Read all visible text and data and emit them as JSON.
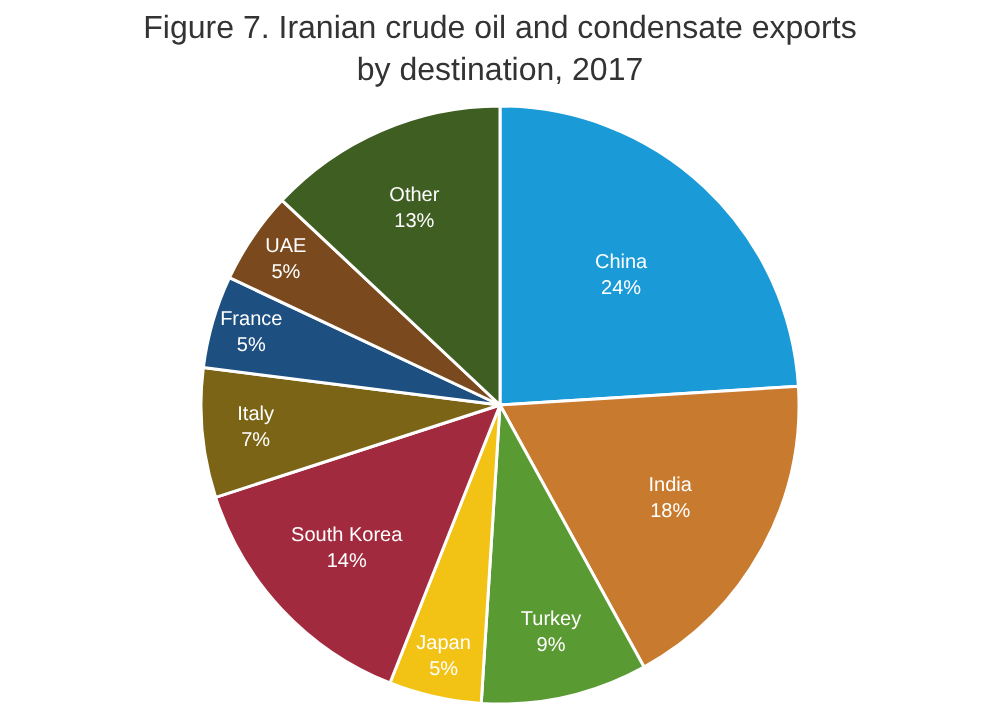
{
  "chart_data": {
    "type": "pie",
    "title": "Figure 7. Iranian crude oil and condensate exports\nby destination, 2017",
    "categories": [
      "China",
      "India",
      "Turkey",
      "Japan",
      "South Korea",
      "Italy",
      "France",
      "UAE",
      "Other"
    ],
    "values": [
      24,
      18,
      9,
      5,
      14,
      7,
      5,
      5,
      13
    ],
    "value_labels": [
      "24%",
      "18%",
      "9%",
      "5%",
      "14%",
      "7%",
      "5%",
      "5%",
      "13%"
    ],
    "colors": [
      "#1a9ad6",
      "#c87a2e",
      "#5a9a32",
      "#f2c314",
      "#a12a3e",
      "#7b6416",
      "#1d4f80",
      "#7a4a1e",
      "#3e5e22"
    ],
    "legend": false
  }
}
